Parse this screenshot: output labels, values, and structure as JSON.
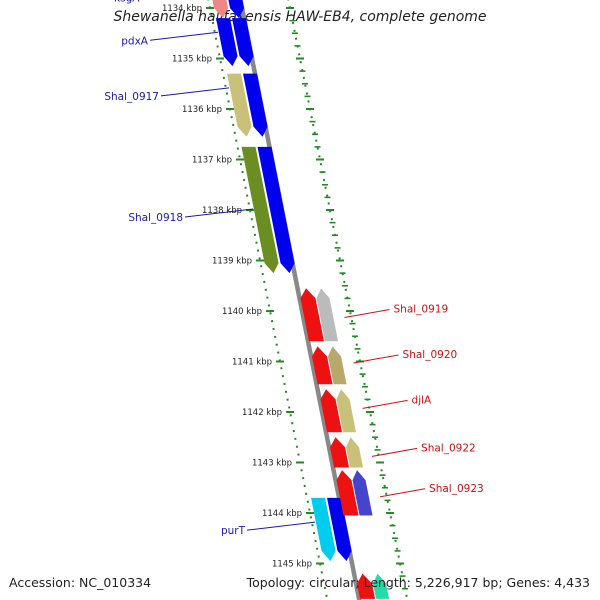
{
  "title": "Shewanella halifaxensis HAW-EB4, complete genome",
  "accession": "Accession: NC_010334",
  "topology": "Topology: circular; Length: 5,226,917 bp; Genes: 4,433",
  "colors": {
    "backbone": "#888888",
    "tick": "#228b22",
    "forward_label": "#1a1aaa",
    "reverse_label": "#cc1111"
  },
  "ticks": [
    {
      "label": "1134 kbp",
      "pos": 1134
    },
    {
      "label": "1135 kbp",
      "pos": 1135
    },
    {
      "label": "1136 kbp",
      "pos": 1136
    },
    {
      "label": "1137 kbp",
      "pos": 1137
    },
    {
      "label": "1138 kbp",
      "pos": 1138
    },
    {
      "label": "1139 kbp",
      "pos": 1139
    },
    {
      "label": "1140 kbp",
      "pos": 1140
    },
    {
      "label": "1141 kbp",
      "pos": 1141
    },
    {
      "label": "1142 kbp",
      "pos": 1142
    },
    {
      "label": "1143 kbp",
      "pos": 1143
    },
    {
      "label": "1144 kbp",
      "pos": 1144
    },
    {
      "label": "1145 kbp",
      "pos": 1145
    }
  ],
  "forward_genes": [
    {
      "start": 1133.45,
      "end": 1134.2,
      "inner": "#ee8888",
      "outer": "#0000ee"
    },
    {
      "start": 1134.2,
      "end": 1135.15,
      "inner": "#0000ee",
      "outer": "#0000ee"
    },
    {
      "start": 1135.3,
      "end": 1136.55,
      "inner": "#c9c07a",
      "outer": "#0000ee"
    },
    {
      "start": 1136.75,
      "end": 1139.25,
      "inner": "#6b8e23",
      "outer": "#0000ee"
    },
    {
      "start": 1143.7,
      "end": 1144.95,
      "inner": "#00ccee",
      "outer": "#0000ee"
    }
  ],
  "reverse_genes": [
    {
      "start": 1139.55,
      "end": 1140.6,
      "inner": "#ee1111",
      "outer": "#bbbbbb"
    },
    {
      "start": 1140.7,
      "end": 1141.45,
      "inner": "#ee1111",
      "outer": "#b8a86a"
    },
    {
      "start": 1141.55,
      "end": 1142.4,
      "inner": "#ee1111",
      "outer": "#c9c07a"
    },
    {
      "start": 1142.5,
      "end": 1143.1,
      "inner": "#ee1111",
      "outer": "#c9c07a"
    },
    {
      "start": 1143.15,
      "end": 1144.05,
      "inner": "#ee1111",
      "outer": "#4444cc"
    },
    {
      "start": 1145.2,
      "end": 1145.7,
      "inner": "#ee1111",
      "outer": "#22ddaa"
    }
  ],
  "forward_labels": [
    {
      "text": "ksgA",
      "pos": 1133.75
    },
    {
      "text": "pdxA",
      "pos": 1134.6
    },
    {
      "text": "Shal_0917",
      "pos": 1135.7
    },
    {
      "text": "Shal_0918",
      "pos": 1138.1
    },
    {
      "text": "purT",
      "pos": 1144.3
    }
  ],
  "reverse_labels": [
    {
      "text": "Shal_0919",
      "pos": 1140.05
    },
    {
      "text": "Shal_0920",
      "pos": 1140.95
    },
    {
      "text": "djlA",
      "pos": 1141.85
    },
    {
      "text": "Shal_0922",
      "pos": 1142.8
    },
    {
      "text": "Shal_0923",
      "pos": 1143.6
    }
  ]
}
